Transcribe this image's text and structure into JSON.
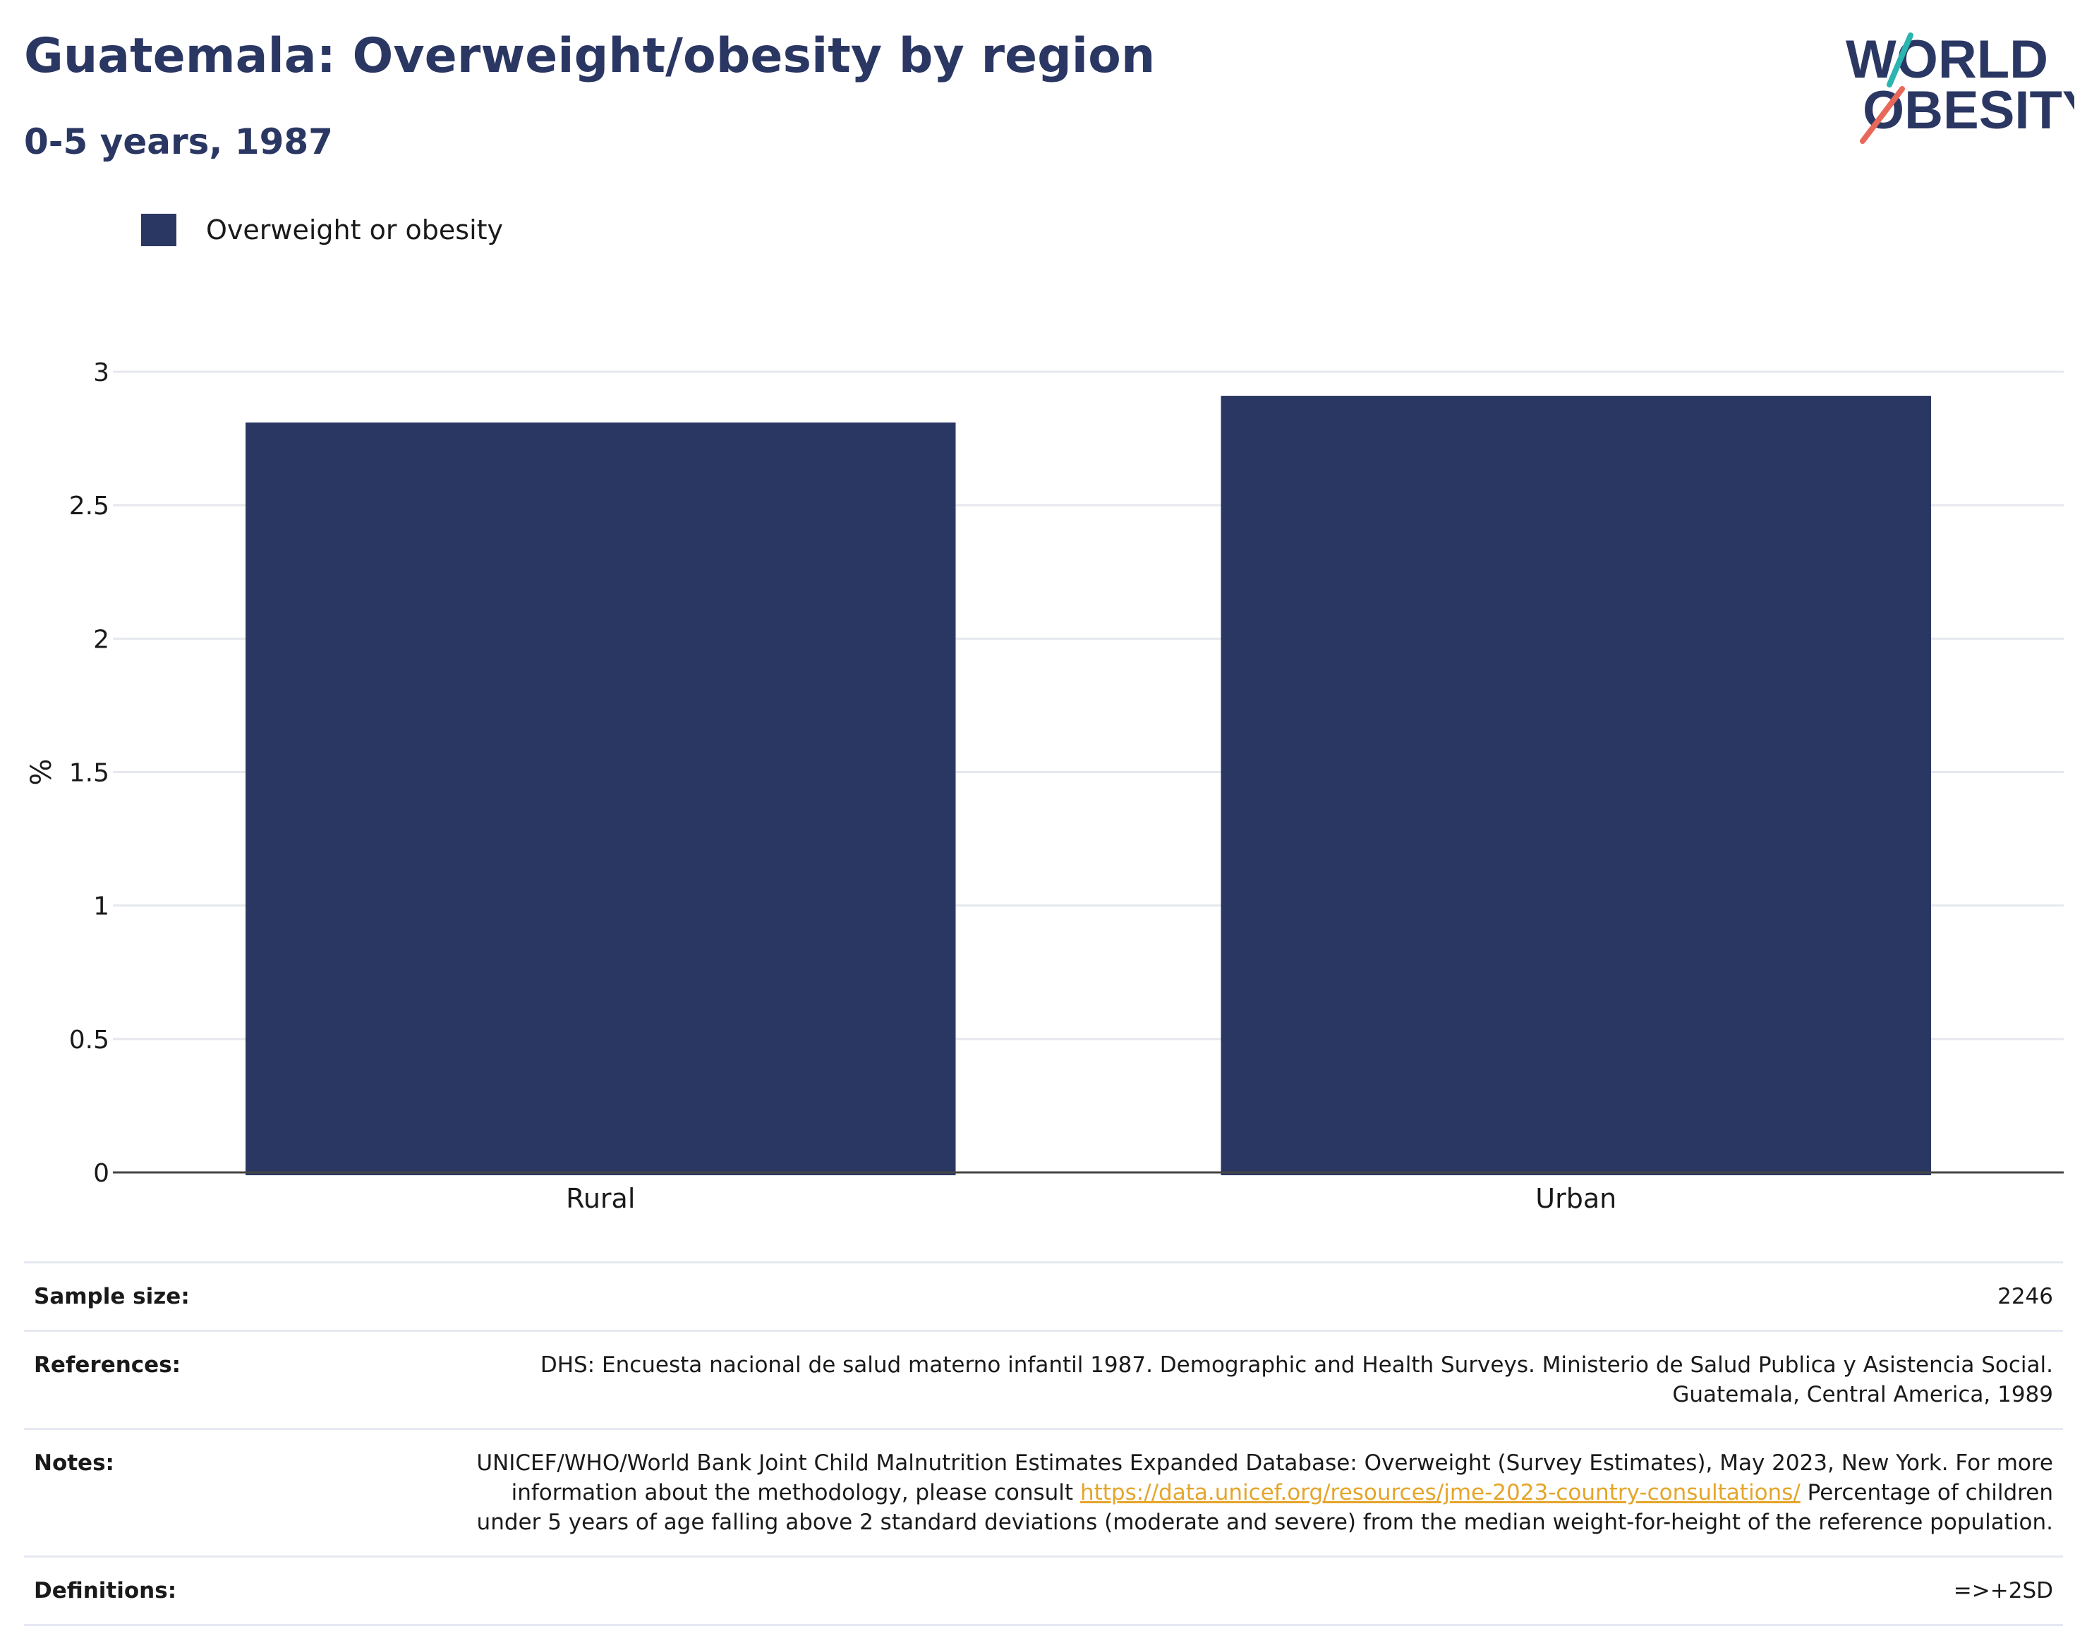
{
  "header": {
    "title": "Guatemala: Overweight/obesity by region",
    "subtitle": "0-5 years, 1987"
  },
  "logo": {
    "line1": "WORLD",
    "line2": "OBESITY"
  },
  "legend": {
    "label": "Overweight or obesity",
    "color": "#2b3763"
  },
  "chart_data": {
    "type": "bar",
    "categories": [
      "Rural",
      "Urban"
    ],
    "series": [
      {
        "name": "Overweight or obesity",
        "values": [
          2.81,
          2.91
        ],
        "color": "#2b3763"
      }
    ],
    "ylabel": "%",
    "xlabel": "",
    "ylim": [
      0,
      3
    ],
    "yticks": [
      0,
      0.5,
      1,
      1.5,
      2,
      2.5,
      3
    ],
    "ytick_labels": [
      "0",
      "0.5",
      "1",
      "1.5",
      "2",
      "2.5",
      "3"
    ],
    "grid": true,
    "legend_position": "top-left"
  },
  "info": {
    "sample_size": {
      "label": "Sample size:",
      "value": "2246"
    },
    "references": {
      "label": "References:",
      "value": "DHS: Encuesta nacional de salud materno infantil 1987. Demographic and Health Surveys. Ministerio de Salud Publica y Asistencia Social. Guatemala, Central America, 1989"
    },
    "notes": {
      "label": "Notes:",
      "text_before": "UNICEF/WHO/World Bank Joint Child Malnutrition Estimates Expanded Database: Overweight (Survey Estimates), May 2023, New York. For more information about the methodology, please consult ",
      "link": "https://data.unicef.org/resources/jme-2023-country-consultations/",
      "text_after": " Percentage of children under 5 years of age falling above 2 standard deviations (moderate and severe) from the median weight-for-height of the reference population."
    },
    "definitions": {
      "label": "Definitions:",
      "value": "=>+2SD"
    }
  }
}
